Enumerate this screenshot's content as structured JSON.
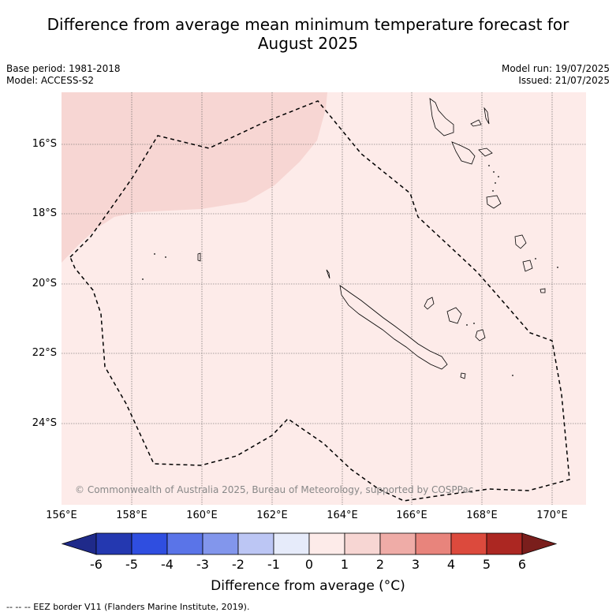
{
  "title_line1": "Difference from average mean minimum temperature forecast for",
  "title_line2": "August 2025",
  "base_period": "Base period: 1981-2018",
  "model": "Model: ACCESS-S2",
  "model_run": "Model run: 19/07/2025",
  "issued": "Issued: 21/07/2025",
  "copyright": "© Commonwealth of Australia 2025, Bureau of Meteorology, supported by COSPPac",
  "lat_labels": [
    "16°S",
    "18°S",
    "20°S",
    "22°S",
    "24°S"
  ],
  "lon_labels": [
    "156°E",
    "158°E",
    "160°E",
    "162°E",
    "164°E",
    "166°E",
    "168°E",
    "170°E"
  ],
  "colorbar": {
    "title": "Difference from average (°C)",
    "tick_labels": [
      "-6",
      "-5",
      "-4",
      "-3",
      "-2",
      "-1",
      "0",
      "1",
      "2",
      "3",
      "4",
      "5",
      "6"
    ],
    "colors": [
      "#1f2a8a",
      "#2438b0",
      "#2f4ee0",
      "#5a74e8",
      "#8296ec",
      "#bcc6f4",
      "#e6ebfa",
      "#fdebe9",
      "#f7d6d3",
      "#efaca7",
      "#e8847c",
      "#dc4a3d",
      "#ac2722",
      "#7a1e1c"
    ]
  },
  "legend_note": "--  --  -- EEZ border V11 (Flanders Marine Institute, 2019).",
  "map_fill": {
    "background": "#fdebe9",
    "northwest_region": "#f7d6d3"
  }
}
